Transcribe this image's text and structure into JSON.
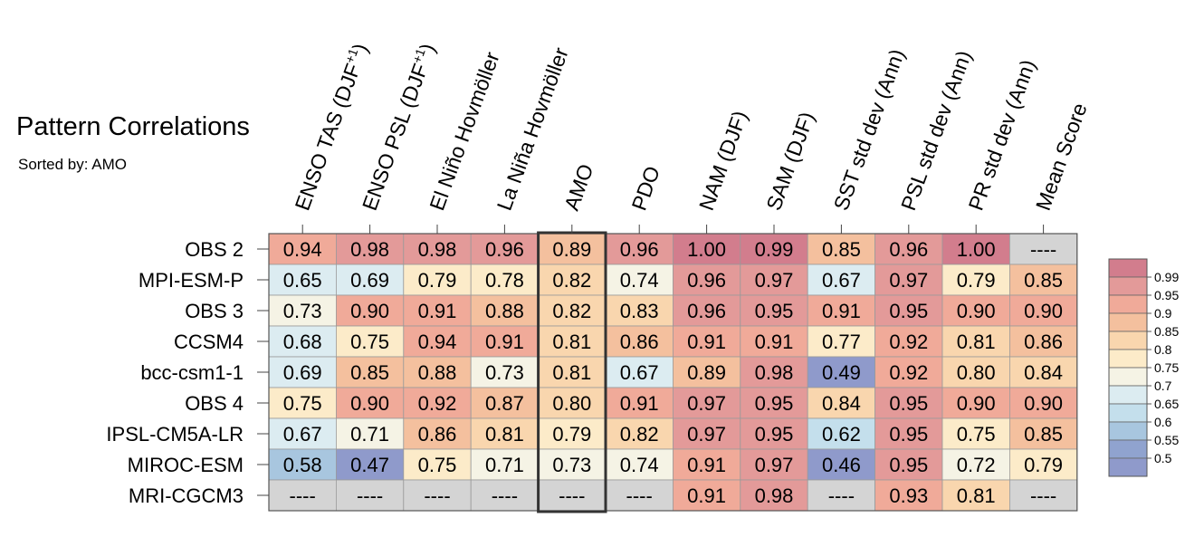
{
  "title": "Pattern Correlations",
  "subtitle": "Sorted by: AMO",
  "chart_data": {
    "type": "heatmap",
    "title": "Pattern Correlations",
    "subtitle": "Sorted by: AMO",
    "columns": [
      {
        "label": "ENSO TAS (DJF",
        "sup": "+1",
        "suffix": ")"
      },
      {
        "label": "ENSO PSL (DJF",
        "sup": "+1",
        "suffix": ")"
      },
      {
        "label": "El Niño Hovmöller"
      },
      {
        "label": "La Niña Hovmöller"
      },
      {
        "label": "AMO"
      },
      {
        "label": "PDO"
      },
      {
        "label": "NAM (DJF)"
      },
      {
        "label": "SAM (DJF)"
      },
      {
        "label": "SST std dev (Ann)"
      },
      {
        "label": "PSL std dev (Ann)"
      },
      {
        "label": "PR std dev (Ann)"
      },
      {
        "label": "Mean Score"
      }
    ],
    "rows": [
      "OBS 2",
      "MPI-ESM-P",
      "OBS 3",
      "CCSM4",
      "bcc-csm1-1",
      "OBS 4",
      "IPSL-CM5A-LR",
      "MIROC-ESM",
      "MRI-CGCM3"
    ],
    "values": [
      [
        "0.94",
        "0.98",
        "0.98",
        "0.96",
        "0.89",
        "0.96",
        "1.00",
        "0.99",
        "0.85",
        "0.96",
        "1.00",
        "----"
      ],
      [
        "0.65",
        "0.69",
        "0.79",
        "0.78",
        "0.82",
        "0.74",
        "0.96",
        "0.97",
        "0.67",
        "0.97",
        "0.79",
        "0.85"
      ],
      [
        "0.73",
        "0.90",
        "0.91",
        "0.88",
        "0.82",
        "0.83",
        "0.96",
        "0.95",
        "0.91",
        "0.95",
        "0.90",
        "0.90"
      ],
      [
        "0.68",
        "0.75",
        "0.94",
        "0.91",
        "0.81",
        "0.86",
        "0.91",
        "0.91",
        "0.77",
        "0.92",
        "0.81",
        "0.86"
      ],
      [
        "0.69",
        "0.85",
        "0.88",
        "0.73",
        "0.81",
        "0.67",
        "0.89",
        "0.98",
        "0.49",
        "0.92",
        "0.80",
        "0.84"
      ],
      [
        "0.75",
        "0.90",
        "0.92",
        "0.87",
        "0.80",
        "0.91",
        "0.97",
        "0.95",
        "0.84",
        "0.95",
        "0.90",
        "0.90"
      ],
      [
        "0.67",
        "0.71",
        "0.86",
        "0.81",
        "0.79",
        "0.82",
        "0.97",
        "0.95",
        "0.62",
        "0.95",
        "0.75",
        "0.85"
      ],
      [
        "0.58",
        "0.47",
        "0.75",
        "0.71",
        "0.73",
        "0.74",
        "0.91",
        "0.97",
        "0.46",
        "0.95",
        "0.72",
        "0.79"
      ],
      [
        "----",
        "----",
        "----",
        "----",
        "----",
        "----",
        "0.91",
        "0.98",
        "----",
        "0.93",
        "0.81",
        "----"
      ]
    ],
    "highlight_column": "AMO",
    "colorbar": {
      "levels": [
        "0.99",
        "0.95",
        "0.9",
        "0.85",
        "0.8",
        "0.75",
        "0.7",
        "0.65",
        "0.6",
        "0.55",
        "0.5"
      ],
      "colors": [
        "#d27d8d",
        "#e39a99",
        "#f0aa99",
        "#f4c09e",
        "#f9d6ae",
        "#fcebc9",
        "#f5f3e5",
        "#dcecf1",
        "#c4dfec",
        "#a8c6df",
        "#90a3cf",
        "#8f9acb"
      ]
    },
    "missing_color": "#d4d4d4",
    "grid": true
  }
}
